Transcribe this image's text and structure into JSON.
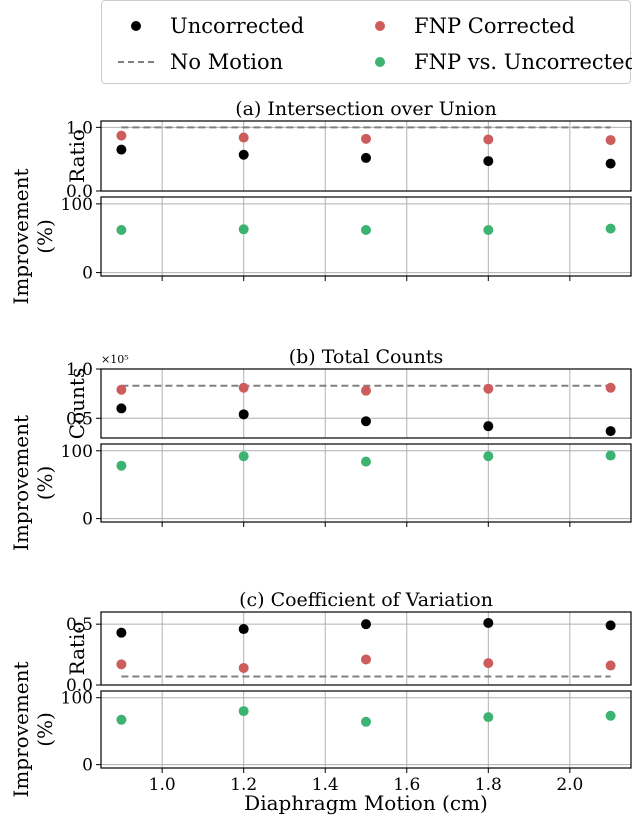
{
  "legend": {
    "uncorrected": "Uncorrected",
    "fnp_corrected": "FNP Corrected",
    "no_motion": "No Motion",
    "fnp_vs_uncorrected": "FNP vs. Uncorrected"
  },
  "colors": {
    "uncorrected": "#000000",
    "fnp_corrected": "#cd5c5c",
    "no_motion": "#808080",
    "improvement": "#3cb371",
    "grid": "#b0b0b0"
  },
  "xlabel": "Diaphragm Motion (cm)",
  "improvement_ylabel": [
    "Improvement",
    "(%)"
  ],
  "chart_data": [
    {
      "type": "scatter",
      "title": "(a) Intersection over Union",
      "ylabel": "Ratio",
      "x": [
        0.9,
        1.2,
        1.5,
        1.8,
        2.1
      ],
      "xlim": [
        0.85,
        2.15
      ],
      "xticks": [
        "1.0",
        "1.2",
        "1.4",
        "1.6",
        "1.8",
        "2.0"
      ],
      "ylim": [
        0,
        1.1
      ],
      "yticks": [
        "0.0",
        "1.0"
      ],
      "yticks_values": [
        0,
        1.0
      ],
      "offset_label": "",
      "series": [
        {
          "name": "Uncorrected",
          "values": [
            0.65,
            0.57,
            0.52,
            0.47,
            0.43
          ]
        },
        {
          "name": "FNP Corrected",
          "values": [
            0.87,
            0.84,
            0.82,
            0.81,
            0.8
          ]
        }
      ],
      "no_motion": 1.0,
      "improvement": {
        "ylim": [
          -5,
          110
        ],
        "yticks": [
          "0",
          "100"
        ],
        "yticks_values": [
          0,
          100
        ],
        "values": [
          62,
          63,
          62,
          62,
          64
        ]
      },
      "grid": true
    },
    {
      "type": "scatter",
      "title": "(b) Total Counts",
      "ylabel": "Counts",
      "x": [
        0.9,
        1.2,
        1.5,
        1.8,
        2.1
      ],
      "xlim": [
        0.85,
        2.15
      ],
      "xticks": [
        "1.0",
        "1.2",
        "1.4",
        "1.6",
        "1.8",
        "2.0"
      ],
      "ylim": [
        0.3,
        1.0
      ],
      "yticks": [
        "0.5",
        "1.0"
      ],
      "yticks_values": [
        0.5,
        1.0
      ],
      "offset_label": "×10⁵",
      "series": [
        {
          "name": "Uncorrected",
          "values": [
            0.6,
            0.54,
            0.47,
            0.42,
            0.37
          ]
        },
        {
          "name": "FNP Corrected",
          "values": [
            0.79,
            0.81,
            0.78,
            0.8,
            0.81
          ]
        }
      ],
      "no_motion": 0.83,
      "improvement": {
        "ylim": [
          -5,
          110
        ],
        "yticks": [
          "0",
          "100"
        ],
        "yticks_values": [
          0,
          100
        ],
        "values": [
          78,
          92,
          84,
          92,
          93
        ]
      },
      "grid": true
    },
    {
      "type": "scatter",
      "title": "(c) Coefficient of Variation",
      "ylabel": "Ratio",
      "x": [
        0.9,
        1.2,
        1.5,
        1.8,
        2.1
      ],
      "xlim": [
        0.85,
        2.15
      ],
      "xticks": [
        "1.0",
        "1.2",
        "1.4",
        "1.6",
        "1.8",
        "2.0"
      ],
      "ylim": [
        0,
        0.6
      ],
      "yticks": [
        "0.0",
        "0.5"
      ],
      "yticks_values": [
        0,
        0.5
      ],
      "offset_label": "",
      "series": [
        {
          "name": "Uncorrected",
          "values": [
            0.43,
            0.46,
            0.5,
            0.51,
            0.49
          ]
        },
        {
          "name": "FNP Corrected",
          "values": [
            0.17,
            0.14,
            0.21,
            0.18,
            0.16
          ]
        }
      ],
      "no_motion": 0.07,
      "improvement": {
        "ylim": [
          -5,
          110
        ],
        "yticks": [
          "0",
          "100"
        ],
        "yticks_values": [
          0,
          100
        ],
        "values": [
          67,
          80,
          64,
          71,
          73
        ]
      },
      "grid": true
    }
  ]
}
